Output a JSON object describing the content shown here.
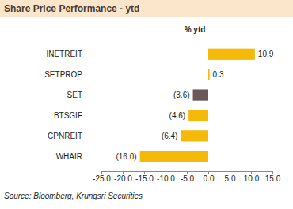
{
  "chart_data": {
    "type": "bar",
    "orientation": "horizontal",
    "title": "Share Price Performance - ytd",
    "x_label": "% ytd",
    "source": "Source: Bloomberg, Krungsri Securities",
    "categories": [
      "INETREIT",
      "SETPROP",
      "SET",
      "BTSGIF",
      "CPNREIT",
      "WHAIR"
    ],
    "values": [
      10.9,
      0.3,
      -3.6,
      -4.6,
      -6.4,
      -16.0
    ],
    "value_labels": [
      "10.9",
      "0.3",
      "(3.6)",
      "(4.6)",
      "(6.4)",
      "(16.0)"
    ],
    "colors": [
      "#f5b90a",
      "#f5b90a",
      "#6b5858",
      "#f5b90a",
      "#f5b90a",
      "#f5b90a"
    ],
    "data_labels": true,
    "xlim": [
      -25,
      15
    ],
    "xticks": [
      {
        "value": -25,
        "label": "-25.0"
      },
      {
        "value": -20,
        "label": "-20.0"
      },
      {
        "value": -15,
        "label": "-15.0"
      },
      {
        "value": -10,
        "label": "-10.0"
      },
      {
        "value": -5,
        "label": "-5.0"
      },
      {
        "value": 0,
        "label": "0.0"
      },
      {
        "value": 5,
        "label": "5.0"
      },
      {
        "value": 10,
        "label": "10.0"
      },
      {
        "value": 15,
        "label": "15.0"
      }
    ],
    "grid": false
  }
}
